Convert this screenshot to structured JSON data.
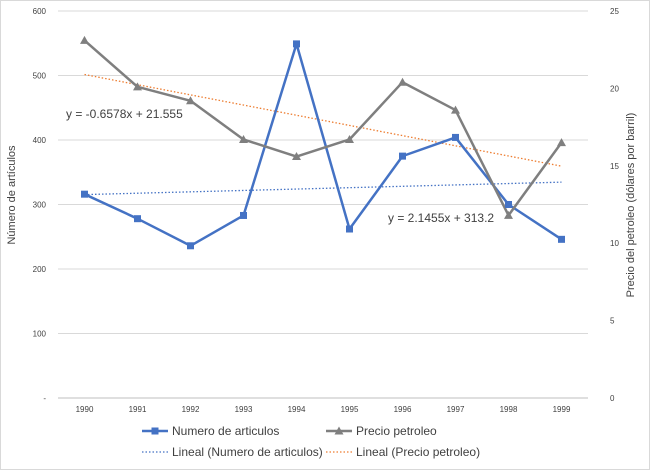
{
  "chart_data": {
    "type": "line",
    "x": [
      1990,
      1991,
      1992,
      1993,
      1994,
      1995,
      1996,
      1997,
      1998,
      1999
    ],
    "categories": [
      "1990",
      "1991",
      "1992",
      "1993",
      "1994",
      "1995",
      "1996",
      "1997",
      "1998",
      "1999"
    ],
    "series": [
      {
        "name": "Numero de articulos",
        "axis": "left",
        "color": "#4472C4",
        "marker": "square",
        "values": [
          316,
          278,
          236,
          283,
          549,
          262,
          375,
          404,
          300,
          246
        ]
      },
      {
        "name": "Precio petroleo",
        "axis": "right",
        "color": "#7F7F7F",
        "marker": "triangle",
        "values": [
          23.1,
          20.1,
          19.2,
          16.7,
          15.6,
          16.7,
          20.4,
          18.6,
          11.8,
          16.5
        ]
      }
    ],
    "trendlines": [
      {
        "name": "Lineal (Numero de articulos)",
        "axis": "left",
        "color": "#4472C4",
        "style": "dotted",
        "slope": 2.1455,
        "intercept": 313.2,
        "equation": "y = 2.1455x + 313.2"
      },
      {
        "name": "Lineal (Precio petroleo)",
        "axis": "right",
        "color": "#ED7D31",
        "style": "dotted",
        "slope": -0.6578,
        "intercept": 21.555,
        "equation": "y = -0.6578x + 21.555"
      }
    ],
    "y_left": {
      "label": "Número de artículos",
      "ylim": [
        0,
        600
      ],
      "ticks": [
        0,
        100,
        200,
        300,
        400,
        500,
        600
      ],
      "tick_labels": [
        "-",
        "100",
        "200",
        "300",
        "400",
        "500",
        "600"
      ]
    },
    "y_right": {
      "label": "Precio del petroleo (dólares por barril)",
      "ylim": [
        0,
        25
      ],
      "ticks": [
        0,
        5,
        10,
        15,
        20,
        25
      ],
      "tick_labels": [
        "0",
        "5",
        "10",
        "15",
        "20",
        "25"
      ]
    },
    "grid": true,
    "legend": "bottom"
  }
}
